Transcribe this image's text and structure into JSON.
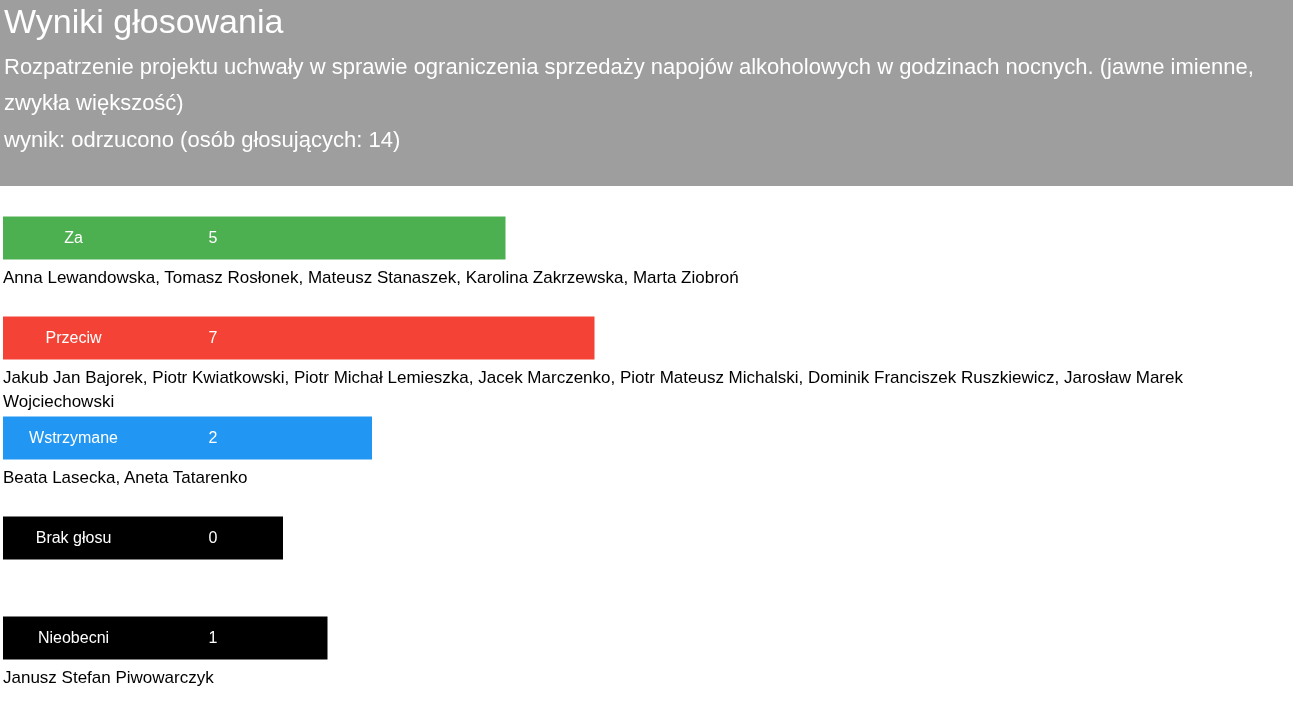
{
  "chart_data": {
    "type": "bar",
    "orientation": "horizontal",
    "title": "Wyniki głosowania",
    "subtitle": "Rozpatrzenie projektu uchwały w sprawie ograniczenia sprzedaży napojów alkoholowych w godzinach nocnych. (jawne imienne, zwykła większość)",
    "categories": [
      "Za",
      "Przeciw",
      "Wstrzymane",
      "Brak głosu",
      "Nieobecni"
    ],
    "values": [
      5,
      7,
      2,
      0,
      1
    ],
    "colors": [
      "#4caf50",
      "#f44336",
      "#2196f3",
      "#000000",
      "#000000"
    ],
    "data_labels": true,
    "annotations": [
      "wynik: odrzucono (osób głosujących: 14)",
      "Anna Lewandowska, Tomasz Rosłonek, Mateusz Stanaszek, Karolina Zakrzewska, Marta Ziobroń",
      "Jakub Jan Bajorek, Piotr Kwiatkowski, Piotr Michał Lemieszka, Jacek Marczenko, Piotr Mateusz Michalski, Dominik Franciszek Ruszkiewicz, Jarosław Marek Wojciechowski",
      "Beata Lasecka, Aneta Tatarenko",
      "Janusz Stefan Piwowarczyk"
    ]
  }
}
